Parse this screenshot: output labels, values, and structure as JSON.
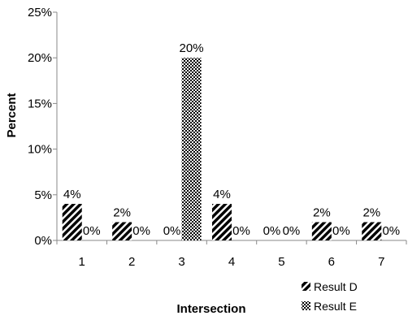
{
  "chart_data": {
    "type": "bar",
    "title": "",
    "xlabel": "Intersection",
    "ylabel": "Percent",
    "categories": [
      "1",
      "2",
      "3",
      "4",
      "5",
      "6",
      "7"
    ],
    "ylim": [
      0,
      25
    ],
    "yticks": [
      0,
      5,
      10,
      15,
      20,
      25
    ],
    "ytick_labels": [
      "0%",
      "5%",
      "10%",
      "15%",
      "20%",
      "25%"
    ],
    "grid": false,
    "legend_position": "bottom-right",
    "series": [
      {
        "name": "Result D",
        "pattern": "diagonal-stripes",
        "values": [
          4,
          2,
          0,
          4,
          0,
          2,
          2
        ],
        "labels": [
          "4%",
          "2%",
          "0%",
          "4%",
          "0%",
          "2%",
          "2%"
        ]
      },
      {
        "name": "Result E",
        "pattern": "checker",
        "values": [
          0,
          0,
          20,
          0,
          0,
          0,
          0
        ],
        "labels": [
          "0%",
          "0%",
          "20%",
          "0%",
          "0%",
          "0%",
          "0%"
        ]
      }
    ]
  }
}
